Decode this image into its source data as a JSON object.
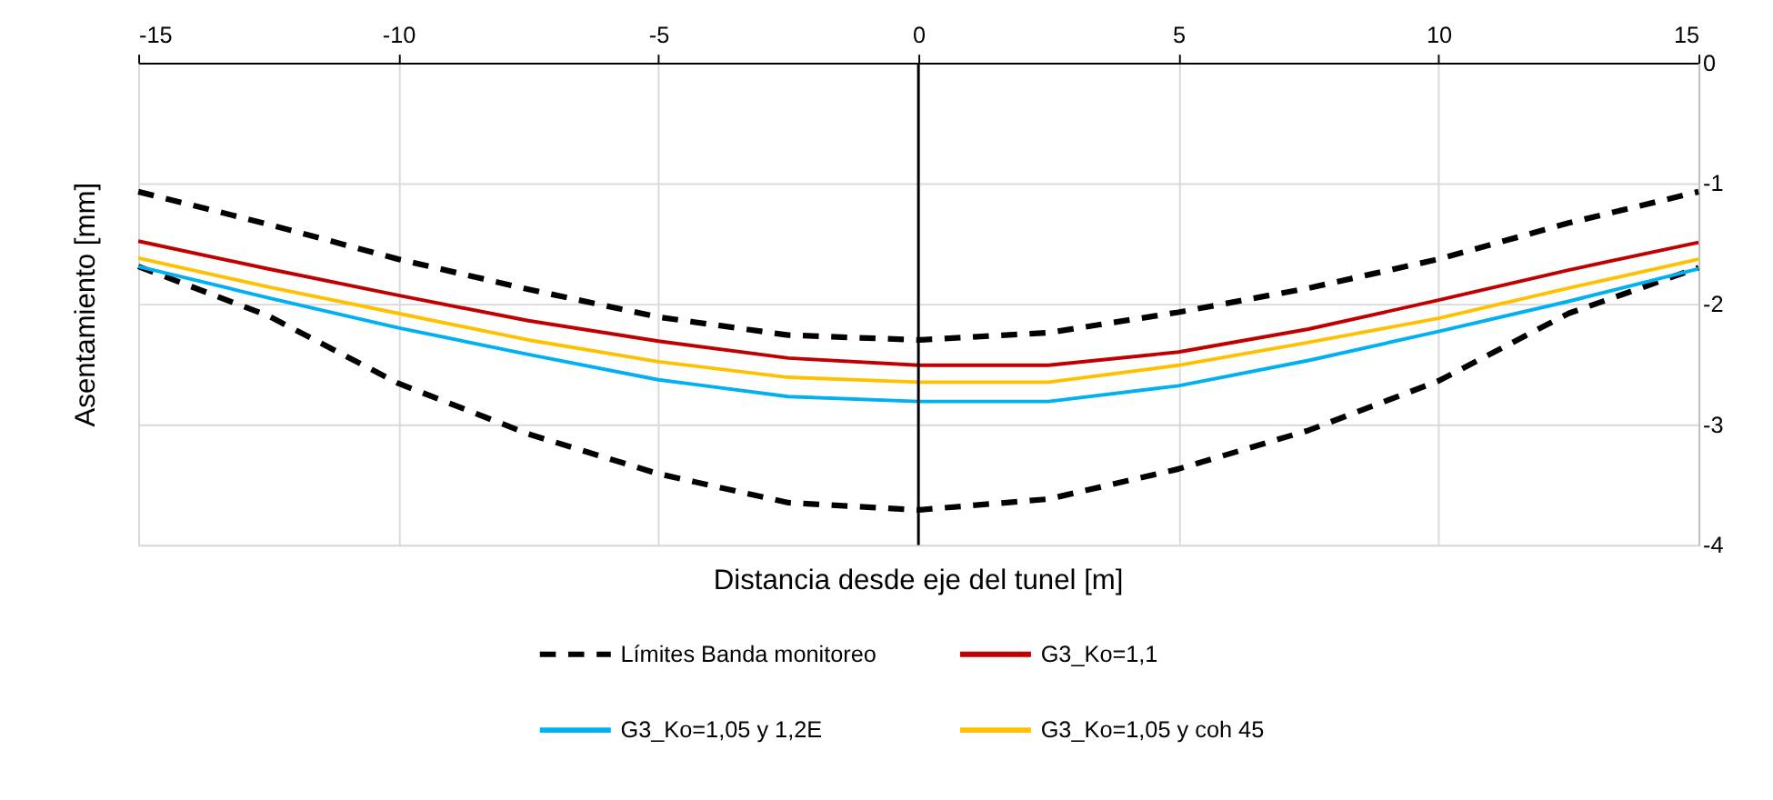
{
  "chart_data": {
    "type": "line",
    "xlabel": "Distancia desde eje del tunel [m]",
    "ylabel": "Asentamiento [mm]",
    "x": [
      -15,
      -12.5,
      -10,
      -7.5,
      -5,
      -2.5,
      0,
      2.5,
      5,
      7.5,
      10,
      12.5,
      15
    ],
    "series": [
      {
        "name": "Límites Banda monitoreo",
        "color": "#000000",
        "line_style": "dashed",
        "values": [
          -1.07,
          -1.34,
          -1.63,
          -1.88,
          -2.11,
          -2.26,
          -2.3,
          -2.24,
          -2.07,
          -1.87,
          -1.63,
          -1.33,
          -1.07
        ]
      },
      {
        "color": "#000000",
        "line_style": "dashed",
        "values": [
          -1.69,
          -2.1,
          -2.66,
          -3.08,
          -3.41,
          -3.65,
          -3.71,
          -3.62,
          -3.37,
          -3.05,
          -2.64,
          -2.08,
          -1.7
        ]
      },
      {
        "name": "G3_Ko=1,1",
        "color": "#c00000",
        "line_style": "solid",
        "values": [
          -1.48,
          -1.71,
          -1.93,
          -2.14,
          -2.31,
          -2.45,
          -2.51,
          -2.51,
          -2.4,
          -2.21,
          -1.97,
          -1.72,
          -1.49
        ]
      },
      {
        "name": "G3_Ko=1,05 y 1,2E",
        "color": "#00b0f0",
        "line_style": "solid",
        "values": [
          -1.69,
          -1.95,
          -2.2,
          -2.42,
          -2.63,
          -2.77,
          -2.81,
          -2.81,
          -2.68,
          -2.47,
          -2.23,
          -1.98,
          -1.71
        ]
      },
      {
        "name": "G3_Ko=1,05 y coh 45",
        "color": "#ffc000",
        "line_style": "solid",
        "values": [
          -1.62,
          -1.86,
          -2.08,
          -2.3,
          -2.48,
          -2.61,
          -2.65,
          -2.65,
          -2.51,
          -2.32,
          -2.12,
          -1.87,
          -1.63
        ]
      }
    ],
    "xlim": [
      -15,
      15
    ],
    "xticks": [
      -15,
      -10,
      -5,
      0,
      5,
      10,
      15
    ],
    "ylim": [
      -4,
      0
    ],
    "yticks": [
      -4,
      -3,
      -2,
      -1,
      0
    ],
    "ref_lines": [
      {
        "axis": "x",
        "value": 0,
        "color": "#000000"
      }
    ],
    "grid": true,
    "legend": "bottom",
    "marker": "none"
  }
}
